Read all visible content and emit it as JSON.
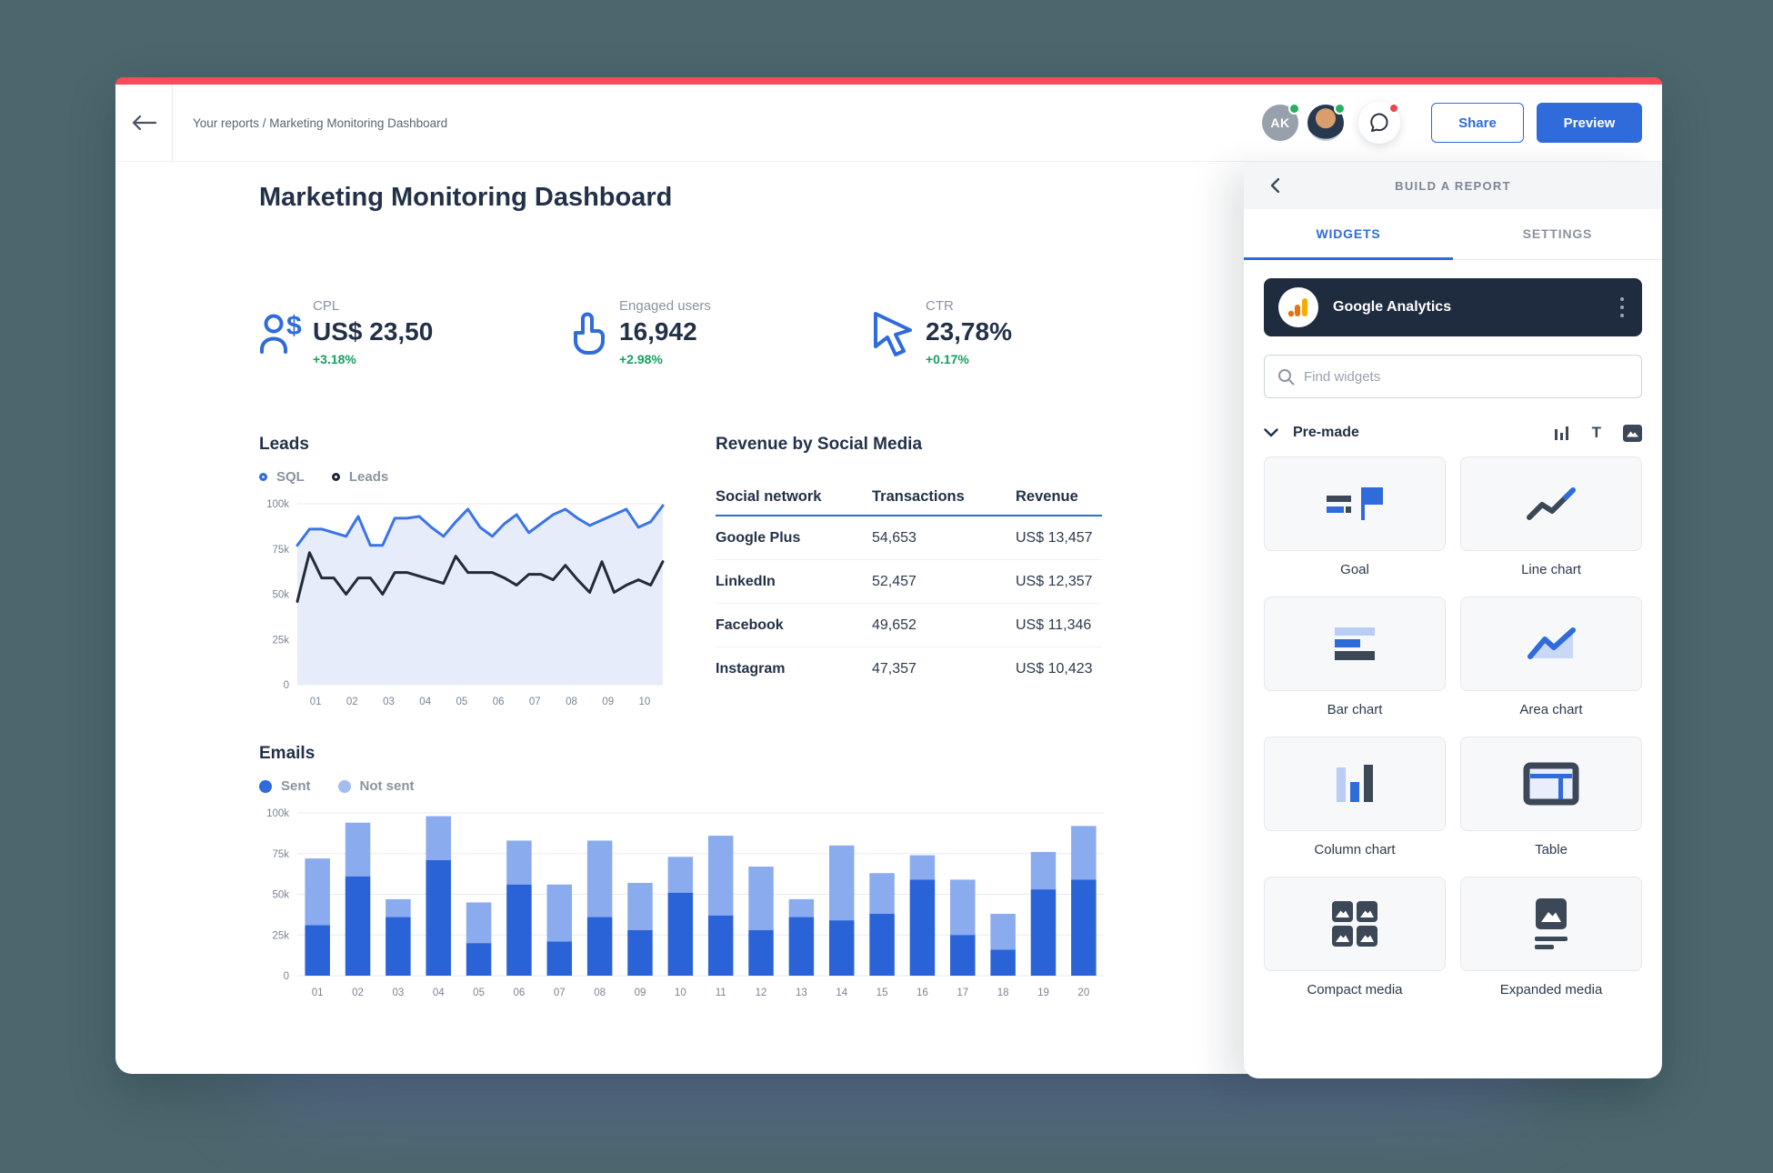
{
  "topbar": {
    "breadcrumb": "Your reports / Marketing Monitoring Dashboard",
    "avatar_initials": "AK",
    "share_label": "Share",
    "preview_label": "Preview"
  },
  "page": {
    "title": "Marketing Monitoring Dashboard"
  },
  "kpis": [
    {
      "label": "CPL",
      "value": "US$ 23,50",
      "delta": "+3.18%",
      "icon": "person-dollar-icon"
    },
    {
      "label": "Engaged users",
      "value": "16,942",
      "delta": "+2.98%",
      "icon": "pointer-finger-icon"
    },
    {
      "label": "CTR",
      "value": "23,78%",
      "delta": "+0.17%",
      "icon": "cursor-icon"
    }
  ],
  "leads": {
    "title": "Leads",
    "legend": [
      {
        "label": "SQL"
      },
      {
        "label": "Leads"
      }
    ]
  },
  "emails": {
    "title": "Emails",
    "legend": [
      {
        "label": "Sent"
      },
      {
        "label": "Not sent"
      }
    ]
  },
  "revenue_table": {
    "title": "Revenue by Social Media",
    "columns": [
      "Social network",
      "Transactions",
      "Revenue"
    ],
    "rows": [
      {
        "network": "Google Plus",
        "transactions": "54,653",
        "revenue": "US$ 13,457"
      },
      {
        "network": "LinkedIn",
        "transactions": "52,457",
        "revenue": "US$ 12,357"
      },
      {
        "network": "Facebook",
        "transactions": "49,652",
        "revenue": "US$ 11,346"
      },
      {
        "network": "Instagram",
        "transactions": "47,357",
        "revenue": "US$ 10,423"
      }
    ]
  },
  "panel": {
    "title": "BUILD A REPORT",
    "tabs": [
      {
        "label": "WIDGETS",
        "active": true
      },
      {
        "label": "SETTINGS",
        "active": false
      }
    ],
    "source": {
      "name": "Google Analytics"
    },
    "search_placeholder": "Find widgets",
    "section_label": "Pre-made",
    "text_tool_glyph": "T",
    "widgets": [
      {
        "label": "Goal"
      },
      {
        "label": "Line chart"
      },
      {
        "label": "Bar chart"
      },
      {
        "label": "Area chart"
      },
      {
        "label": "Column chart"
      },
      {
        "label": "Table"
      },
      {
        "label": "Compact media"
      },
      {
        "label": "Expanded media"
      }
    ]
  },
  "colors": {
    "accent_blue": "#2f6bdb",
    "light_blue": "#8aabee",
    "dark_navy": "#233148",
    "positive_green": "#17a05e",
    "top_strip_red": "#fb4a59",
    "panel_source_bg": "#1f2c40"
  },
  "chart_data": [
    {
      "type": "line",
      "title": "Leads",
      "values_unit": "thousands",
      "ylim": [
        0,
        100
      ],
      "grid": true,
      "legend_position": "top",
      "x_labels": [
        "01",
        "02",
        "03",
        "04",
        "05",
        "06",
        "07",
        "08",
        "09",
        "10"
      ],
      "y_ticks": [
        {
          "label": "100k",
          "value": 100
        },
        {
          "label": "75k",
          "value": 75
        },
        {
          "label": "50k",
          "value": 50
        },
        {
          "label": "25k",
          "value": 25
        },
        {
          "label": "0",
          "value": 0
        }
      ],
      "series": [
        {
          "name": "SQL",
          "color": "#3a74e8",
          "area": true,
          "area_color": "#e7ecfa",
          "values": [
            77,
            86,
            86,
            84,
            82,
            93,
            77,
            77,
            92,
            92,
            93,
            87,
            82,
            90,
            97,
            87,
            82,
            89,
            94,
            84,
            89,
            94,
            97,
            92,
            88,
            91,
            94,
            97,
            87,
            90,
            99
          ]
        },
        {
          "name": "Leads",
          "color": "#232c36",
          "values": [
            46,
            73,
            59,
            59,
            50,
            59,
            59,
            50,
            62,
            62,
            60,
            58,
            56,
            71,
            62,
            62,
            62,
            59,
            55,
            61,
            61,
            58,
            66,
            58,
            51,
            68,
            51,
            55,
            58,
            55,
            68
          ]
        }
      ]
    },
    {
      "type": "stacked-bar",
      "title": "Emails",
      "values_unit": "thousands",
      "ylim": [
        0,
        100
      ],
      "grid": true,
      "legend_position": "top",
      "categories": [
        "01",
        "02",
        "03",
        "04",
        "05",
        "06",
        "07",
        "08",
        "09",
        "10",
        "11",
        "12",
        "13",
        "14",
        "15",
        "16",
        "17",
        "18",
        "19",
        "20"
      ],
      "y_ticks": [
        {
          "label": "100k",
          "value": 100
        },
        {
          "label": "75k",
          "value": 75
        },
        {
          "label": "50k",
          "value": 50
        },
        {
          "label": "25k",
          "value": 25
        },
        {
          "label": "0",
          "value": 0
        }
      ],
      "series": [
        {
          "name": "Sent",
          "color": "#2a63d8",
          "values": [
            31,
            61,
            36,
            71,
            20,
            56,
            21,
            36,
            28,
            51,
            37,
            28,
            36,
            34,
            38,
            59,
            25,
            16,
            53,
            59
          ]
        },
        {
          "name": "Not sent",
          "color": "#8aabee",
          "values": [
            41,
            33,
            11,
            27,
            25,
            27,
            35,
            47,
            29,
            22,
            49,
            39,
            11,
            46,
            25,
            15,
            34,
            22,
            23,
            33
          ]
        }
      ]
    }
  ]
}
